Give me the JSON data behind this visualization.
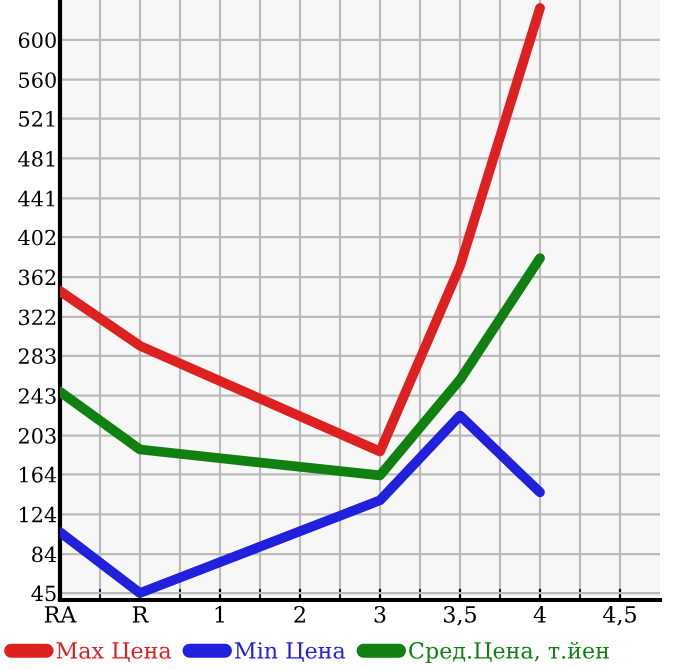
{
  "chart_data": {
    "type": "line",
    "categories": [
      "RA",
      "R",
      "1",
      "2",
      "3",
      "3,5",
      "4",
      "4,5"
    ],
    "series": [
      {
        "name": "Max Цена",
        "color": "#dd2020",
        "values": [
          348,
          293,
          null,
          null,
          187,
          373,
          632,
          null
        ]
      },
      {
        "name": "Min Цена",
        "color": "#2020dd",
        "values": [
          106,
          45,
          null,
          null,
          138,
          223,
          146,
          null
        ]
      },
      {
        "name": "Сред.Цена, т.йен",
        "color": "#108010",
        "values": [
          247,
          189,
          null,
          null,
          163,
          259,
          381,
          null
        ]
      }
    ],
    "ylim": [
      38,
      640
    ],
    "yticks": [
      45,
      84,
      124,
      164,
      203,
      243,
      283,
      322,
      362,
      402,
      441,
      481,
      521,
      560,
      600
    ],
    "grid": true,
    "legend": "bottom",
    "marker": "none",
    "line_style": "solid"
  }
}
